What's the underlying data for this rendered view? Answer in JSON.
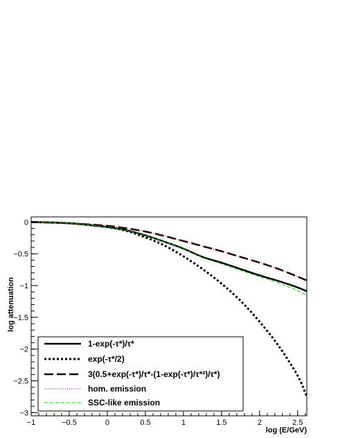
{
  "chart_data": {
    "type": "line",
    "title": "",
    "xlabel": "log (E/GeV)",
    "ylabel": "log attenuation",
    "xlim": [
      -1,
      2.62
    ],
    "ylim": [
      -3.05,
      0.08
    ],
    "x_ticks": [
      -1,
      -0.5,
      0,
      0.5,
      1,
      1.5,
      2,
      2.5
    ],
    "x_tick_labels": [
      "−1",
      "−0.5",
      "0",
      "0.5",
      "1",
      "1.5",
      "2",
      "2.5"
    ],
    "y_ticks": [
      0,
      -0.5,
      -1,
      -1.5,
      -2,
      -2.5,
      -3
    ],
    "y_tick_labels": [
      "0",
      "−0.5",
      "−1",
      "−1.5",
      "−2",
      "−2.5",
      "−3"
    ],
    "grid": false,
    "legend_position": "bottom-left",
    "series": [
      {
        "name": "1-exp(-τ*)/τ*",
        "color": "#000000",
        "style": "solid",
        "x": [
          -1,
          -0.5,
          0,
          0.25,
          0.5,
          0.75,
          1,
          1.25,
          1.5,
          1.75,
          2,
          2.25,
          2.5,
          2.62
        ],
        "y": [
          0,
          -0.02,
          -0.08,
          -0.13,
          -0.21,
          -0.31,
          -0.42,
          -0.55,
          -0.64,
          -0.74,
          -0.84,
          -0.93,
          -1.03,
          -1.09
        ]
      },
      {
        "name": "exp(-τ*/2)",
        "color": "#000000",
        "style": "dotted",
        "x": [
          -1,
          -0.5,
          0,
          0.25,
          0.5,
          0.75,
          1,
          1.25,
          1.5,
          1.75,
          2,
          2.25,
          2.5,
          2.62
        ],
        "y": [
          0,
          -0.02,
          -0.08,
          -0.14,
          -0.24,
          -0.37,
          -0.54,
          -0.74,
          -0.97,
          -1.24,
          -1.57,
          -1.95,
          -2.42,
          -2.75
        ]
      },
      {
        "name": "3(0.5+exp(-τ*)/τ*-(1-exp(-τ*)/τ*²)/τ*)",
        "color": "#000000",
        "style": "longdash",
        "x": [
          -1,
          -0.5,
          0,
          0.25,
          0.5,
          0.75,
          1,
          1.25,
          1.5,
          1.75,
          2,
          2.25,
          2.5,
          2.62
        ],
        "y": [
          0,
          -0.02,
          -0.06,
          -0.1,
          -0.15,
          -0.22,
          -0.3,
          -0.38,
          -0.46,
          -0.55,
          -0.64,
          -0.74,
          -0.86,
          -0.92
        ]
      },
      {
        "name": "hom. emission",
        "color": "#cc0000",
        "style": "dotted-fine",
        "x": [
          -1,
          -0.5,
          0,
          0.25,
          0.5,
          0.75,
          1,
          1.25,
          1.5,
          1.75,
          2,
          2.25,
          2.5,
          2.62
        ],
        "y": [
          0,
          -0.02,
          -0.06,
          -0.1,
          -0.15,
          -0.22,
          -0.3,
          -0.38,
          -0.46,
          -0.55,
          -0.64,
          -0.74,
          -0.86,
          -0.92
        ]
      },
      {
        "name": "SSC-like emission",
        "color": "#00cc00",
        "style": "dashed",
        "x": [
          -1,
          -0.5,
          0,
          0.25,
          0.5,
          0.75,
          1,
          1.25,
          1.5,
          1.75,
          2,
          2.25,
          2.5,
          2.62
        ],
        "y": [
          0,
          -0.02,
          -0.08,
          -0.13,
          -0.21,
          -0.31,
          -0.43,
          -0.56,
          -0.66,
          -0.76,
          -0.86,
          -0.96,
          -1.08,
          -1.16
        ]
      }
    ]
  }
}
